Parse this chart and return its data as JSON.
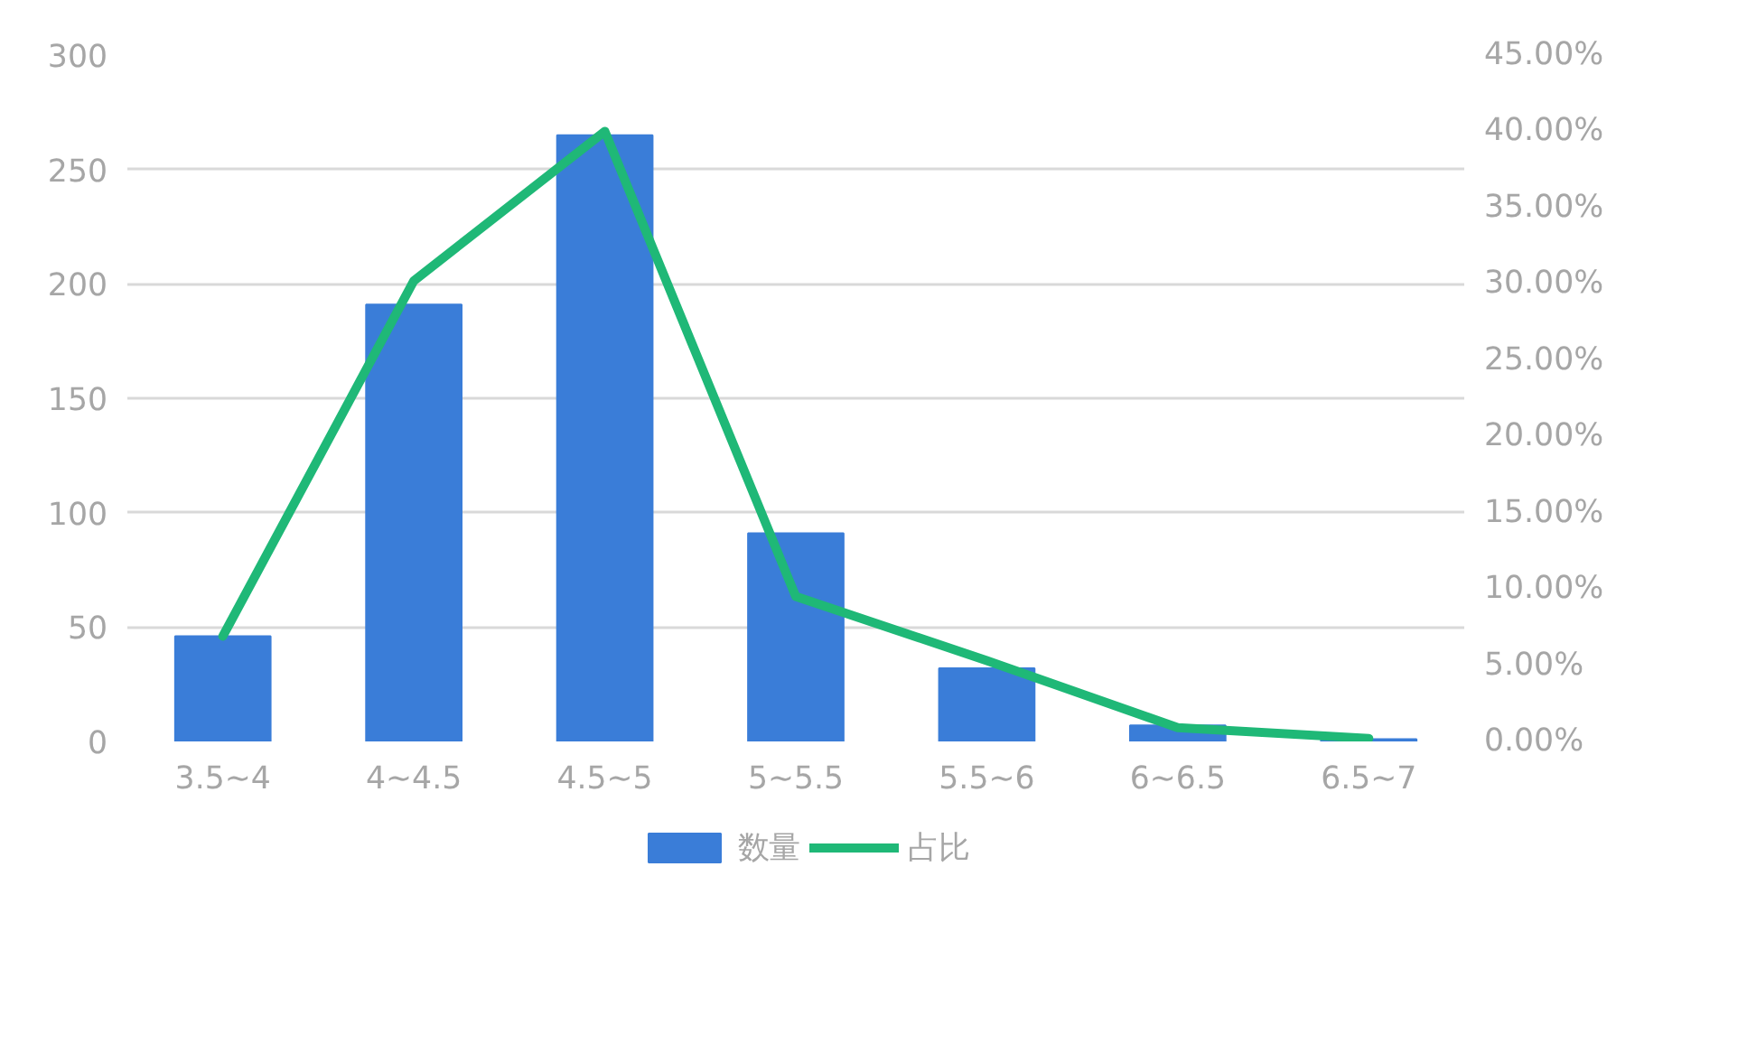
{
  "chart_data": {
    "type": "bar",
    "categories": [
      "3.5~4",
      "4~4.5",
      "4.5~5",
      "5~5.5",
      "5.5~6",
      "6~6.5",
      "6.5~7"
    ],
    "series": [
      {
        "name": "数量",
        "color": "#3a7dd8",
        "values": [
          46,
          191,
          265,
          91,
          32,
          7,
          1
        ]
      },
      {
        "name": "占比",
        "type": "line",
        "axis": "y2",
        "color": "#1fb877",
        "values": [
          6.9,
          30.2,
          40.0,
          9.5,
          5.3,
          0.9,
          0.2
        ]
      }
    ],
    "ylim": [
      0,
      300
    ],
    "yticks": [
      0,
      50,
      100,
      150,
      200,
      250,
      300
    ],
    "y2lim": [
      0,
      45
    ],
    "y2ticks": [
      {
        "value": 0,
        "label": "0.00%"
      },
      {
        "value": 5,
        "label": "5.00%"
      },
      {
        "value": 10,
        "label": "10.00%"
      },
      {
        "value": 15,
        "label": "15.00%"
      },
      {
        "value": 20,
        "label": "20.00%"
      },
      {
        "value": 25,
        "label": "25.00%"
      },
      {
        "value": 30,
        "label": "30.00%"
      },
      {
        "value": 35,
        "label": "35.00%"
      },
      {
        "value": 40,
        "label": "40.00%"
      },
      {
        "value": 45,
        "label": "45.00%"
      }
    ],
    "grid": "y",
    "legend": "bottom"
  }
}
